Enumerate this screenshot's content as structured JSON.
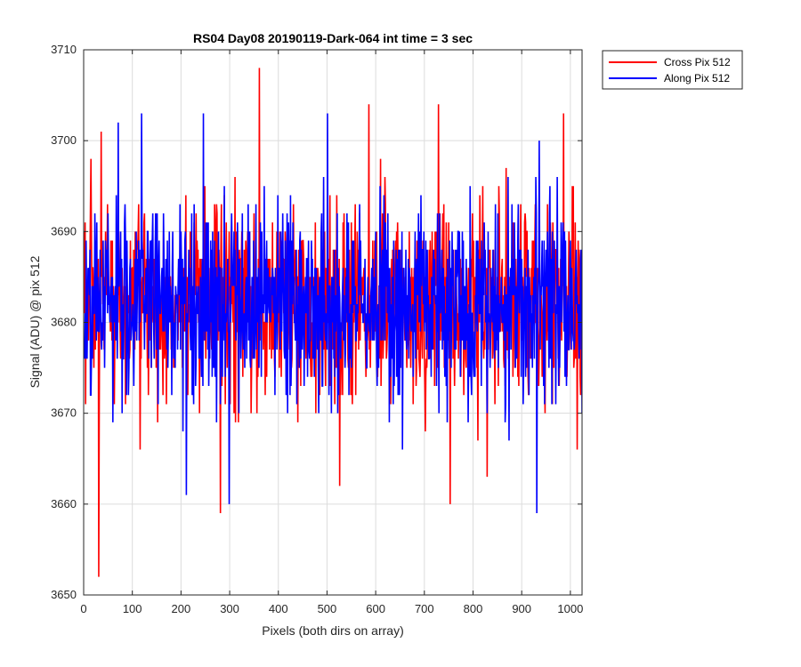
{
  "chart_data": {
    "type": "line",
    "title": "RS04 Day08 20190119-Dark-064 int time = 3 sec",
    "xlabel": "Pixels (both dirs on array)",
    "ylabel": "Signal (ADU) @ pix 512",
    "xlim": [
      0,
      1024
    ],
    "ylim": [
      3650,
      3710
    ],
    "xticks": [
      0,
      100,
      200,
      300,
      400,
      500,
      600,
      700,
      800,
      900,
      1000
    ],
    "yticks": [
      3650,
      3660,
      3670,
      3680,
      3690,
      3700,
      3710
    ],
    "grid": true,
    "legend_position": "outside-top-right",
    "point_count": 1024,
    "series": [
      {
        "name": "Cross Pix 512",
        "color": "#ff0000",
        "mean": 3682,
        "typical_range": [
          3668,
          3696
        ],
        "extremes": [
          {
            "x": 30,
            "y": 3652
          },
          {
            "x": 35,
            "y": 3701
          },
          {
            "x": 280,
            "y": 3659
          },
          {
            "x": 360,
            "y": 3708
          },
          {
            "x": 525,
            "y": 3662
          },
          {
            "x": 585,
            "y": 3704
          },
          {
            "x": 728,
            "y": 3704
          },
          {
            "x": 752,
            "y": 3660
          },
          {
            "x": 828,
            "y": 3663
          },
          {
            "x": 985,
            "y": 3703
          }
        ]
      },
      {
        "name": "Along Pix 512",
        "color": "#0000ff",
        "mean": 3682,
        "typical_range": [
          3668,
          3696
        ],
        "extremes": [
          {
            "x": 70,
            "y": 3702
          },
          {
            "x": 118,
            "y": 3703
          },
          {
            "x": 210,
            "y": 3661
          },
          {
            "x": 245,
            "y": 3703
          },
          {
            "x": 298,
            "y": 3660
          },
          {
            "x": 500,
            "y": 3703
          },
          {
            "x": 930,
            "y": 3659
          },
          {
            "x": 935,
            "y": 3700
          }
        ]
      }
    ]
  }
}
